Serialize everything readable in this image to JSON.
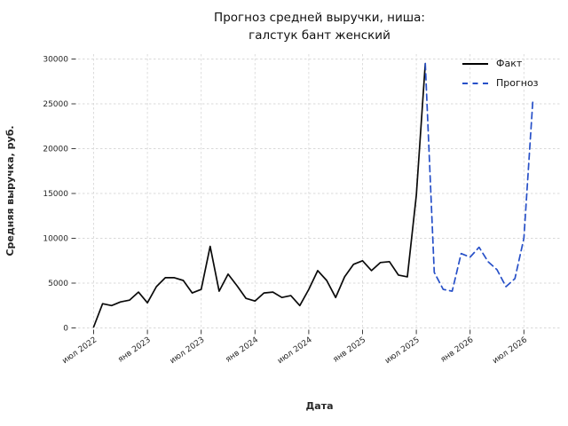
{
  "header": {
    "title_line1": "Прогноз средней выручки, ниша:",
    "title_line2": "галстук бант женский"
  },
  "chart_data": {
    "type": "line",
    "title": "Прогноз средней выручки, ниша: галстук бант женский",
    "xlabel": "Дата",
    "ylabel": "Средняя выручка, руб.",
    "ylim": [
      0,
      30000
    ],
    "yticks": [
      0,
      5000,
      10000,
      15000,
      20000,
      25000,
      30000
    ],
    "xtick_labels": [
      "июл 2022",
      "янв 2023",
      "июл 2023",
      "янв 2024",
      "июл 2024",
      "янв 2025",
      "июл 2025",
      "янв 2026",
      "июл 2026"
    ],
    "xtick_months": [
      0,
      6,
      12,
      18,
      24,
      30,
      36,
      42,
      48
    ],
    "grid": "dashed",
    "legend_position": "upper right",
    "series": [
      {
        "name": "Факт",
        "color": "#0a0a0a",
        "line_style": "solid",
        "start_month": 0,
        "x": [
          "июл 2022",
          "авг 2022",
          "сен 2022",
          "окт 2022",
          "ноя 2022",
          "дек 2022",
          "янв 2023",
          "фев 2023",
          "мар 2023",
          "апр 2023",
          "май 2023",
          "июн 2023",
          "июл 2023",
          "авг 2023",
          "сен 2023",
          "окт 2023",
          "ноя 2023",
          "дек 2023",
          "янв 2024",
          "фев 2024",
          "мар 2024",
          "апр 2024",
          "май 2024",
          "июн 2024",
          "июл 2024",
          "авг 2024",
          "сен 2024",
          "окт 2024",
          "ноя 2024",
          "дек 2024",
          "янв 2025",
          "фев 2025",
          "мар 2025",
          "апр 2025",
          "май 2025",
          "июн 2025",
          "июл 2025",
          "авг 2025"
        ],
        "values": [
          100,
          2700,
          2500,
          2900,
          3100,
          4000,
          2800,
          4600,
          5600,
          5600,
          5300,
          3900,
          4300,
          9100,
          4100,
          6000,
          4700,
          3300,
          3000,
          3900,
          4000,
          3400,
          3600,
          2500,
          4300,
          6400,
          5300,
          3400,
          5700,
          7100,
          7500,
          6400,
          7300,
          7400,
          5900,
          5700,
          14800,
          29500
        ]
      },
      {
        "name": "Прогноз",
        "color": "#2750c8",
        "line_style": "dashed",
        "start_month": 37,
        "x": [
          "авг 2025",
          "сен 2025",
          "окт 2025",
          "ноя 2025",
          "дек 2025",
          "янв 2026",
          "фев 2026",
          "мар 2026",
          "апр 2026",
          "май 2026",
          "июн 2026",
          "июл 2026",
          "авг 2026"
        ],
        "values": [
          29500,
          6200,
          4300,
          4100,
          8300,
          7900,
          9000,
          7400,
          6500,
          4600,
          5500,
          10000,
          25400
        ]
      }
    ]
  }
}
